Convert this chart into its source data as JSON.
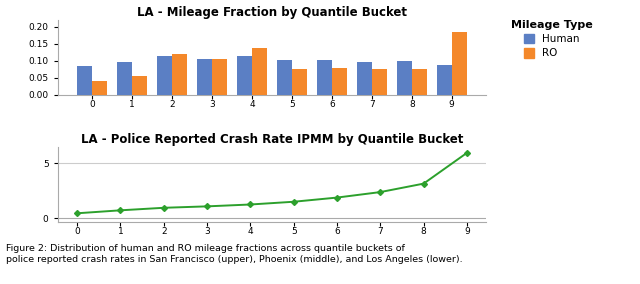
{
  "title_bar": "LA - Mileage Fraction by Quantile Bucket",
  "title_line": "LA - Police Reported Crash Rate IPMM by Quantile Bucket",
  "caption_bold": "Figure 2: ",
  "caption_rest": "Distribution of human and RO mileage fractions across quantile buckets of\npolice reported crash rates in San Francisco (upper), Phoenix (middle), and Los Angeles (lower).",
  "quantile_buckets": [
    0,
    1,
    2,
    3,
    4,
    5,
    6,
    7,
    8,
    9
  ],
  "human_values": [
    0.085,
    0.095,
    0.113,
    0.104,
    0.115,
    0.103,
    0.103,
    0.097,
    0.098,
    0.086
  ],
  "ro_values": [
    0.04,
    0.055,
    0.12,
    0.105,
    0.138,
    0.075,
    0.078,
    0.076,
    0.076,
    0.183
  ],
  "crash_rate_values": [
    0.45,
    0.72,
    0.95,
    1.08,
    1.25,
    1.5,
    1.88,
    2.38,
    3.15,
    5.95
  ],
  "human_color": "#5b7fc4",
  "ro_color": "#f4882a",
  "line_color": "#2ca02c",
  "legend_title": "Mileage Type",
  "legend_labels": [
    "Human",
    "RO"
  ],
  "bar_ylim": [
    0,
    0.22
  ],
  "bar_yticks": [
    0.0,
    0.05,
    0.1,
    0.15,
    0.2
  ],
  "line_ylim": [
    -0.3,
    6.5
  ],
  "line_yticks": [
    0,
    5
  ],
  "background_color": "#ffffff",
  "spine_color": "#aaaaaa",
  "grid_color": "#cccccc"
}
